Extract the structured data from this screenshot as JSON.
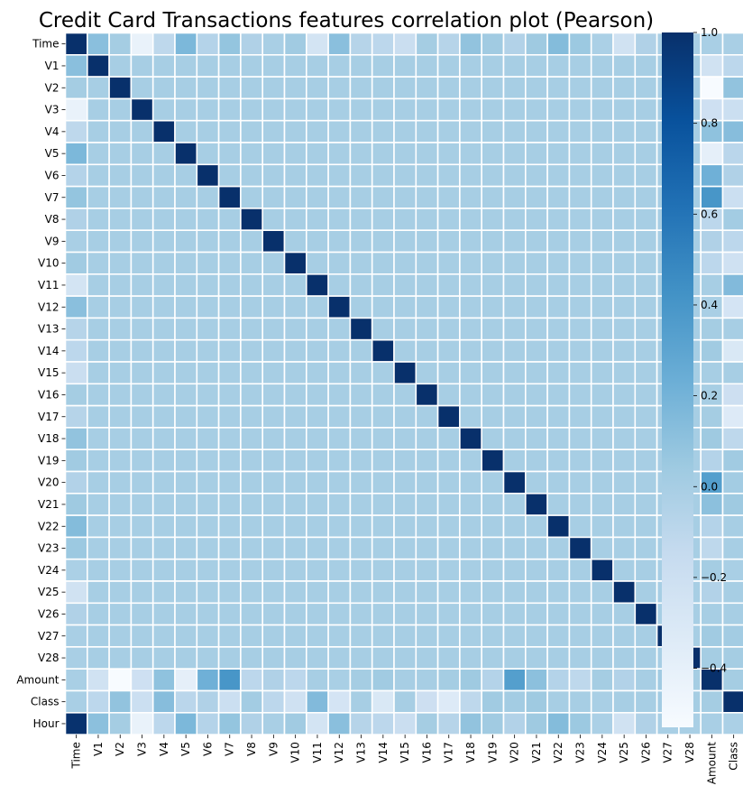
{
  "chart_data": {
    "type": "heatmap",
    "title": "Credit Card Transactions features correlation plot (Pearson)",
    "xlabel": "",
    "ylabel": "",
    "labels": [
      "Time",
      "V1",
      "V2",
      "V3",
      "V4",
      "V5",
      "V6",
      "V7",
      "V8",
      "V9",
      "V10",
      "V11",
      "V12",
      "V13",
      "V14",
      "V15",
      "V16",
      "V17",
      "V18",
      "V19",
      "V20",
      "V21",
      "V22",
      "V23",
      "V24",
      "V25",
      "V26",
      "V27",
      "V28",
      "Amount",
      "Class",
      "Hour"
    ],
    "matrix": [
      [
        1.0,
        0.12,
        0.01,
        -0.42,
        -0.11,
        0.17,
        -0.06,
        0.08,
        -0.04,
        -0.01,
        0.03,
        -0.25,
        0.12,
        -0.07,
        -0.1,
        -0.18,
        0.01,
        -0.07,
        0.09,
        0.03,
        -0.05,
        0.04,
        0.14,
        0.05,
        -0.02,
        -0.23,
        -0.04,
        -0.01,
        -0.01,
        -0.01,
        -0.01,
        0.99
      ],
      [
        0.12,
        1.0,
        0.0,
        0.0,
        0.0,
        0.0,
        0.0,
        0.0,
        0.0,
        0.0,
        0.0,
        0.0,
        0.0,
        0.0,
        0.0,
        0.0,
        0.0,
        0.0,
        0.0,
        0.0,
        0.0,
        0.0,
        0.0,
        0.0,
        0.0,
        0.0,
        0.0,
        0.0,
        0.0,
        -0.23,
        -0.1,
        0.11
      ],
      [
        0.01,
        0.0,
        1.0,
        0.0,
        0.0,
        0.0,
        0.0,
        0.0,
        0.0,
        0.0,
        0.0,
        0.0,
        0.0,
        0.0,
        0.0,
        0.0,
        0.0,
        0.0,
        0.0,
        0.0,
        0.0,
        0.0,
        0.0,
        0.0,
        0.0,
        0.0,
        0.0,
        0.0,
        0.0,
        -0.53,
        0.09,
        0.01
      ],
      [
        -0.42,
        0.0,
        0.0,
        1.0,
        0.0,
        0.0,
        0.0,
        0.0,
        0.0,
        0.0,
        0.0,
        0.0,
        0.0,
        0.0,
        0.0,
        0.0,
        0.0,
        0.0,
        0.0,
        0.0,
        0.0,
        0.0,
        0.0,
        0.0,
        0.0,
        0.0,
        0.0,
        0.0,
        0.0,
        -0.21,
        -0.19,
        -0.42
      ],
      [
        -0.11,
        0.0,
        0.0,
        0.0,
        1.0,
        0.0,
        0.0,
        0.0,
        0.0,
        0.0,
        0.0,
        0.0,
        0.0,
        0.0,
        0.0,
        0.0,
        0.0,
        0.0,
        0.0,
        0.0,
        0.0,
        0.0,
        0.0,
        0.0,
        0.0,
        0.0,
        0.0,
        0.0,
        0.0,
        0.1,
        0.13,
        -0.1
      ],
      [
        0.17,
        0.0,
        0.0,
        0.0,
        0.0,
        1.0,
        0.0,
        0.0,
        0.0,
        0.0,
        0.0,
        0.0,
        0.0,
        0.0,
        0.0,
        0.0,
        0.0,
        0.0,
        0.0,
        0.0,
        0.0,
        0.0,
        0.0,
        0.0,
        0.0,
        0.0,
        0.0,
        0.0,
        0.0,
        -0.39,
        -0.09,
        0.17
      ],
      [
        -0.06,
        0.0,
        0.0,
        0.0,
        0.0,
        0.0,
        1.0,
        0.0,
        0.0,
        0.0,
        0.0,
        0.0,
        0.0,
        0.0,
        0.0,
        0.0,
        0.0,
        0.0,
        0.0,
        0.0,
        0.0,
        0.0,
        0.0,
        0.0,
        0.0,
        0.0,
        0.0,
        0.0,
        0.0,
        0.22,
        -0.04,
        -0.06
      ],
      [
        0.08,
        0.0,
        0.0,
        0.0,
        0.0,
        0.0,
        0.0,
        1.0,
        0.0,
        0.0,
        0.0,
        0.0,
        0.0,
        0.0,
        0.0,
        0.0,
        0.0,
        0.0,
        0.0,
        0.0,
        0.0,
        0.0,
        0.0,
        0.0,
        0.0,
        0.0,
        0.0,
        0.0,
        0.0,
        0.4,
        -0.19,
        0.08
      ],
      [
        -0.04,
        0.0,
        0.0,
        0.0,
        0.0,
        0.0,
        0.0,
        0.0,
        1.0,
        0.0,
        0.0,
        0.0,
        0.0,
        0.0,
        0.0,
        0.0,
        0.0,
        0.0,
        0.0,
        0.0,
        0.0,
        0.0,
        0.0,
        0.0,
        0.0,
        0.0,
        0.0,
        0.0,
        0.0,
        -0.1,
        0.02,
        -0.04
      ],
      [
        -0.01,
        0.0,
        0.0,
        0.0,
        0.0,
        0.0,
        0.0,
        0.0,
        0.0,
        1.0,
        0.0,
        0.0,
        0.0,
        0.0,
        0.0,
        0.0,
        0.0,
        0.0,
        0.0,
        0.0,
        0.0,
        0.0,
        0.0,
        0.0,
        0.0,
        0.0,
        0.0,
        0.0,
        0.0,
        -0.04,
        -0.1,
        -0.01
      ],
      [
        0.03,
        0.0,
        0.0,
        0.0,
        0.0,
        0.0,
        0.0,
        0.0,
        0.0,
        0.0,
        1.0,
        0.0,
        0.0,
        0.0,
        0.0,
        0.0,
        0.0,
        0.0,
        0.0,
        0.0,
        0.0,
        0.0,
        0.0,
        0.0,
        0.0,
        0.0,
        0.0,
        0.0,
        0.0,
        -0.1,
        -0.22,
        0.03
      ],
      [
        -0.25,
        0.0,
        0.0,
        0.0,
        0.0,
        0.0,
        0.0,
        0.0,
        0.0,
        0.0,
        0.0,
        1.0,
        0.0,
        0.0,
        0.0,
        0.0,
        0.0,
        0.0,
        0.0,
        0.0,
        0.0,
        0.0,
        0.0,
        0.0,
        0.0,
        0.0,
        0.0,
        0.0,
        0.0,
        0.0,
        0.15,
        -0.25
      ],
      [
        0.12,
        0.0,
        0.0,
        0.0,
        0.0,
        0.0,
        0.0,
        0.0,
        0.0,
        0.0,
        0.0,
        0.0,
        1.0,
        0.0,
        0.0,
        0.0,
        0.0,
        0.0,
        0.0,
        0.0,
        0.0,
        0.0,
        0.0,
        0.0,
        0.0,
        0.0,
        0.0,
        0.0,
        0.0,
        -0.01,
        -0.26,
        0.12
      ],
      [
        -0.07,
        0.0,
        0.0,
        0.0,
        0.0,
        0.0,
        0.0,
        0.0,
        0.0,
        0.0,
        0.0,
        0.0,
        0.0,
        1.0,
        0.0,
        0.0,
        0.0,
        0.0,
        0.0,
        0.0,
        0.0,
        0.0,
        0.0,
        0.0,
        0.0,
        0.0,
        0.0,
        0.0,
        0.0,
        0.01,
        -0.0,
        -0.07
      ],
      [
        -0.1,
        0.0,
        0.0,
        0.0,
        0.0,
        0.0,
        0.0,
        0.0,
        0.0,
        0.0,
        0.0,
        0.0,
        0.0,
        0.0,
        1.0,
        0.0,
        0.0,
        0.0,
        0.0,
        0.0,
        0.0,
        0.0,
        0.0,
        0.0,
        0.0,
        0.0,
        0.0,
        0.0,
        0.0,
        0.03,
        -0.3,
        -0.1
      ],
      [
        -0.18,
        0.0,
        0.0,
        0.0,
        0.0,
        0.0,
        0.0,
        0.0,
        0.0,
        0.0,
        0.0,
        0.0,
        0.0,
        0.0,
        0.0,
        1.0,
        0.0,
        0.0,
        0.0,
        0.0,
        0.0,
        0.0,
        0.0,
        0.0,
        0.0,
        0.0,
        0.0,
        0.0,
        0.0,
        -0.0,
        -0.0,
        -0.18
      ],
      [
        0.01,
        0.0,
        0.0,
        0.0,
        0.0,
        0.0,
        0.0,
        0.0,
        0.0,
        0.0,
        0.0,
        0.0,
        0.0,
        0.0,
        0.0,
        0.0,
        1.0,
        0.0,
        0.0,
        0.0,
        0.0,
        0.0,
        0.0,
        0.0,
        0.0,
        0.0,
        0.0,
        0.0,
        0.0,
        -0.0,
        -0.2,
        0.01
      ],
      [
        -0.07,
        0.0,
        0.0,
        0.0,
        0.0,
        0.0,
        0.0,
        0.0,
        0.0,
        0.0,
        0.0,
        0.0,
        0.0,
        0.0,
        0.0,
        0.0,
        0.0,
        1.0,
        0.0,
        0.0,
        0.0,
        0.0,
        0.0,
        0.0,
        0.0,
        0.0,
        0.0,
        0.0,
        0.0,
        0.01,
        -0.33,
        -0.07
      ],
      [
        0.09,
        0.0,
        0.0,
        0.0,
        0.0,
        0.0,
        0.0,
        0.0,
        0.0,
        0.0,
        0.0,
        0.0,
        0.0,
        0.0,
        0.0,
        0.0,
        0.0,
        0.0,
        1.0,
        0.0,
        0.0,
        0.0,
        0.0,
        0.0,
        0.0,
        0.0,
        0.0,
        0.0,
        0.0,
        0.04,
        -0.11,
        0.09
      ],
      [
        0.03,
        0.0,
        0.0,
        0.0,
        0.0,
        0.0,
        0.0,
        0.0,
        0.0,
        0.0,
        0.0,
        0.0,
        0.0,
        0.0,
        0.0,
        0.0,
        0.0,
        0.0,
        0.0,
        1.0,
        0.0,
        0.0,
        0.0,
        0.0,
        0.0,
        0.0,
        0.0,
        0.0,
        0.0,
        -0.06,
        0.03,
        0.03
      ],
      [
        -0.05,
        0.0,
        0.0,
        0.0,
        0.0,
        0.0,
        0.0,
        0.0,
        0.0,
        0.0,
        0.0,
        0.0,
        0.0,
        0.0,
        0.0,
        0.0,
        0.0,
        0.0,
        0.0,
        0.0,
        1.0,
        0.0,
        0.0,
        0.0,
        0.0,
        0.0,
        0.0,
        0.0,
        0.0,
        0.34,
        0.02,
        -0.05
      ],
      [
        0.04,
        0.0,
        0.0,
        0.0,
        0.0,
        0.0,
        0.0,
        0.0,
        0.0,
        0.0,
        0.0,
        0.0,
        0.0,
        0.0,
        0.0,
        0.0,
        0.0,
        0.0,
        0.0,
        0.0,
        0.0,
        1.0,
        0.0,
        0.0,
        0.0,
        0.0,
        0.0,
        0.0,
        0.0,
        0.11,
        0.04,
        0.04
      ],
      [
        0.14,
        0.0,
        0.0,
        0.0,
        0.0,
        0.0,
        0.0,
        0.0,
        0.0,
        0.0,
        0.0,
        0.0,
        0.0,
        0.0,
        0.0,
        0.0,
        0.0,
        0.0,
        0.0,
        0.0,
        0.0,
        0.0,
        1.0,
        0.0,
        0.0,
        0.0,
        0.0,
        0.0,
        0.0,
        -0.06,
        0.0,
        0.14
      ],
      [
        0.05,
        0.0,
        0.0,
        0.0,
        0.0,
        0.0,
        0.0,
        0.0,
        0.0,
        0.0,
        0.0,
        0.0,
        0.0,
        0.0,
        0.0,
        0.0,
        0.0,
        0.0,
        0.0,
        0.0,
        0.0,
        0.0,
        0.0,
        1.0,
        0.0,
        0.0,
        0.0,
        0.0,
        0.0,
        -0.11,
        -0.0,
        0.05
      ],
      [
        -0.02,
        0.0,
        0.0,
        0.0,
        0.0,
        0.0,
        0.0,
        0.0,
        0.0,
        0.0,
        0.0,
        0.0,
        0.0,
        0.0,
        0.0,
        0.0,
        0.0,
        0.0,
        0.0,
        0.0,
        0.0,
        0.0,
        0.0,
        0.0,
        1.0,
        0.0,
        0.0,
        0.0,
        0.0,
        0.01,
        -0.01,
        -0.02
      ],
      [
        -0.23,
        0.0,
        0.0,
        0.0,
        0.0,
        0.0,
        0.0,
        0.0,
        0.0,
        0.0,
        0.0,
        0.0,
        0.0,
        0.0,
        0.0,
        0.0,
        0.0,
        0.0,
        0.0,
        0.0,
        0.0,
        0.0,
        0.0,
        0.0,
        0.0,
        1.0,
        0.0,
        0.0,
        0.0,
        -0.05,
        0.0,
        -0.23
      ],
      [
        -0.04,
        0.0,
        0.0,
        0.0,
        0.0,
        0.0,
        0.0,
        0.0,
        0.0,
        0.0,
        0.0,
        0.0,
        0.0,
        0.0,
        0.0,
        0.0,
        0.0,
        0.0,
        0.0,
        0.0,
        0.0,
        0.0,
        0.0,
        0.0,
        0.0,
        0.0,
        1.0,
        0.0,
        0.0,
        -0.0,
        0.0,
        -0.04
      ],
      [
        -0.01,
        0.0,
        0.0,
        0.0,
        0.0,
        0.0,
        0.0,
        0.0,
        0.0,
        0.0,
        0.0,
        0.0,
        0.0,
        0.0,
        0.0,
        0.0,
        0.0,
        0.0,
        0.0,
        0.0,
        0.0,
        0.0,
        0.0,
        0.0,
        0.0,
        0.0,
        0.0,
        1.0,
        0.0,
        0.03,
        0.02,
        -0.01
      ],
      [
        -0.01,
        0.0,
        0.0,
        0.0,
        0.0,
        0.0,
        0.0,
        0.0,
        0.0,
        0.0,
        0.0,
        0.0,
        0.0,
        0.0,
        0.0,
        0.0,
        0.0,
        0.0,
        0.0,
        0.0,
        0.0,
        0.0,
        0.0,
        0.0,
        0.0,
        0.0,
        0.0,
        0.0,
        1.0,
        0.01,
        0.01,
        -0.01
      ],
      [
        -0.01,
        -0.23,
        -0.53,
        -0.21,
        0.1,
        -0.39,
        0.22,
        0.4,
        -0.1,
        -0.04,
        -0.1,
        0.0,
        -0.01,
        0.01,
        0.03,
        -0.0,
        -0.0,
        0.01,
        0.04,
        -0.06,
        0.34,
        0.11,
        -0.06,
        -0.11,
        0.01,
        -0.05,
        -0.0,
        0.03,
        0.01,
        1.0,
        0.01,
        -0.01
      ],
      [
        -0.01,
        -0.1,
        0.09,
        -0.19,
        0.13,
        -0.09,
        -0.04,
        -0.19,
        0.02,
        -0.1,
        -0.22,
        0.15,
        -0.26,
        -0.0,
        -0.3,
        -0.0,
        -0.2,
        -0.33,
        -0.11,
        0.03,
        0.02,
        0.04,
        0.0,
        -0.0,
        -0.01,
        0.0,
        0.0,
        0.02,
        0.01,
        0.01,
        1.0,
        -0.02
      ],
      [
        0.99,
        0.11,
        0.01,
        -0.42,
        -0.1,
        0.17,
        -0.06,
        0.08,
        -0.04,
        -0.01,
        0.03,
        -0.25,
        0.12,
        -0.07,
        -0.1,
        -0.18,
        0.01,
        -0.07,
        0.09,
        0.03,
        -0.05,
        0.04,
        0.14,
        0.05,
        -0.02,
        -0.23,
        -0.04,
        -0.01,
        -0.01,
        -0.01,
        -0.02,
        1.0
      ]
    ],
    "vmin": -0.53,
    "vmax": 1.0,
    "colormap": "Blues",
    "colorbar_ticks": [
      1.0,
      0.8,
      0.6,
      0.4,
      0.2,
      0.0,
      -0.2,
      -0.4
    ],
    "colorbar_tick_labels": [
      "1.0",
      "0.8",
      "0.6",
      "0.4",
      "0.2",
      "0.0",
      "−0.2",
      "−0.4"
    ],
    "grid": true,
    "cell_border_color": "#ffffff",
    "legend": "colorbar-right"
  }
}
